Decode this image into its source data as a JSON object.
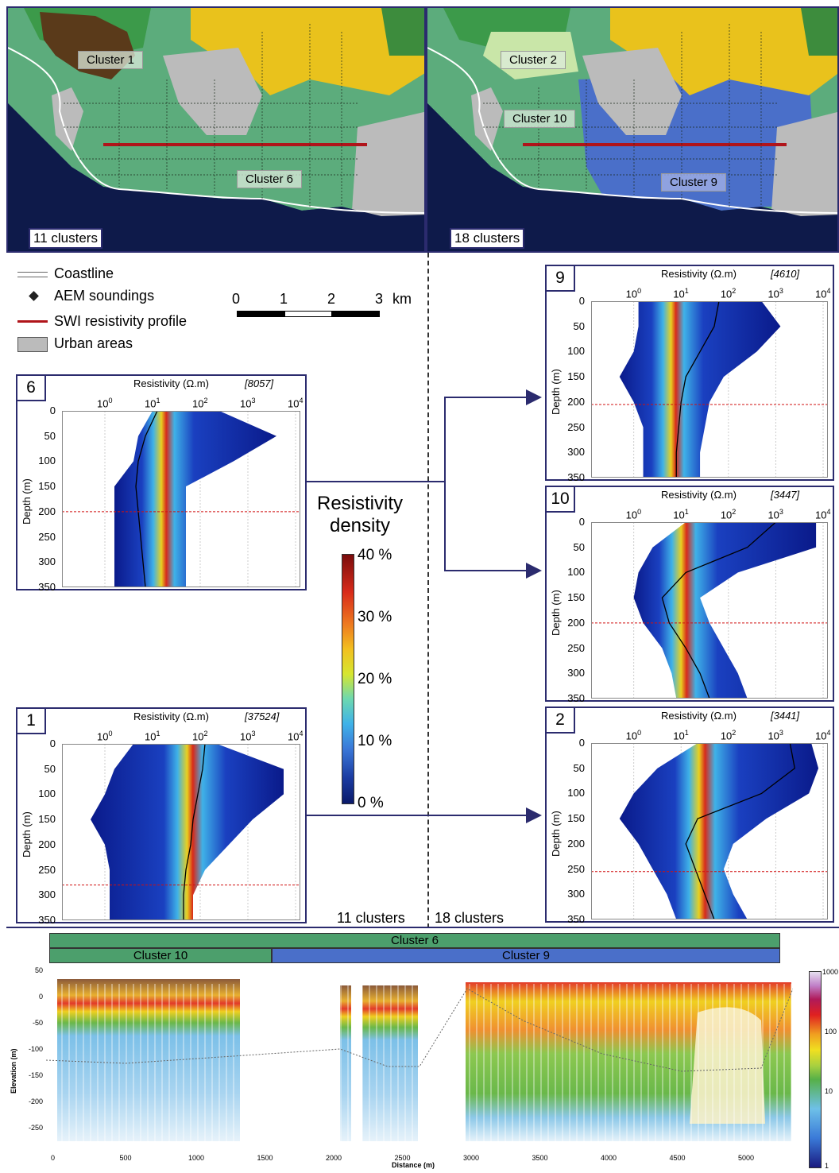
{
  "maps": {
    "left": {
      "count_label": "11 clusters",
      "labels": [
        "Cluster 1",
        "Cluster 6"
      ]
    },
    "right": {
      "count_label": "18 clusters",
      "labels": [
        "Cluster 2",
        "Cluster 10",
        "Cluster 9"
      ]
    }
  },
  "legend": {
    "items": [
      "Coastline",
      "AEM soundings",
      "SWI resistivity profile",
      "Urban areas"
    ],
    "scale_ticks": [
      "0",
      "1",
      "2",
      "3"
    ],
    "scale_unit": "km"
  },
  "colorbar": {
    "title_line1": "Resistivity",
    "title_line2": "density",
    "ticks": [
      "40 %",
      "30 %",
      "20 %",
      "10 %",
      "0 %"
    ]
  },
  "divider_labels": {
    "left": "11 clusters",
    "right": "18 clusters"
  },
  "panels": [
    {
      "id": "6",
      "title": "Resistivity (Ω.m)",
      "count": "[8057]"
    },
    {
      "id": "1",
      "title": "Resistivity (Ω.m)",
      "count": "[37524]"
    },
    {
      "id": "9",
      "title": "Resistivity (Ω.m)",
      "count": "[4610]"
    },
    {
      "id": "10",
      "title": "Resistivity (Ω.m)",
      "count": "[3447]"
    },
    {
      "id": "2",
      "title": "Resistivity (Ω.m)",
      "count": "[3441]"
    }
  ],
  "panel_axes": {
    "x_ticks": [
      "10",
      "10",
      "10",
      "10",
      "10"
    ],
    "x_exps": [
      "0",
      "1",
      "2",
      "3",
      "4"
    ],
    "y_ticks": [
      "0",
      "50",
      "100",
      "150",
      "200",
      "250",
      "300",
      "350"
    ],
    "y_label": "Depth (m)"
  },
  "profile": {
    "bars": {
      "top": "Cluster 6",
      "left": "Cluster 10",
      "right": "Cluster 9"
    },
    "y_label": "Elevation (m)",
    "x_label": "Distance (m)",
    "y_ticks": [
      "50",
      "0",
      "-50",
      "-100",
      "-150",
      "-200",
      "-250"
    ],
    "x_ticks": [
      "0",
      "500",
      "1000",
      "1500",
      "2000",
      "2500",
      "3000",
      "3500",
      "4000",
      "4500",
      "5000"
    ],
    "cb_ticks": [
      "1000",
      "100",
      "10",
      "1"
    ]
  },
  "colors": {
    "frame": "#2b2b6e",
    "red_line": "#b0141a",
    "green": "#4c9f6c",
    "blue": "#4a6fc9"
  }
}
